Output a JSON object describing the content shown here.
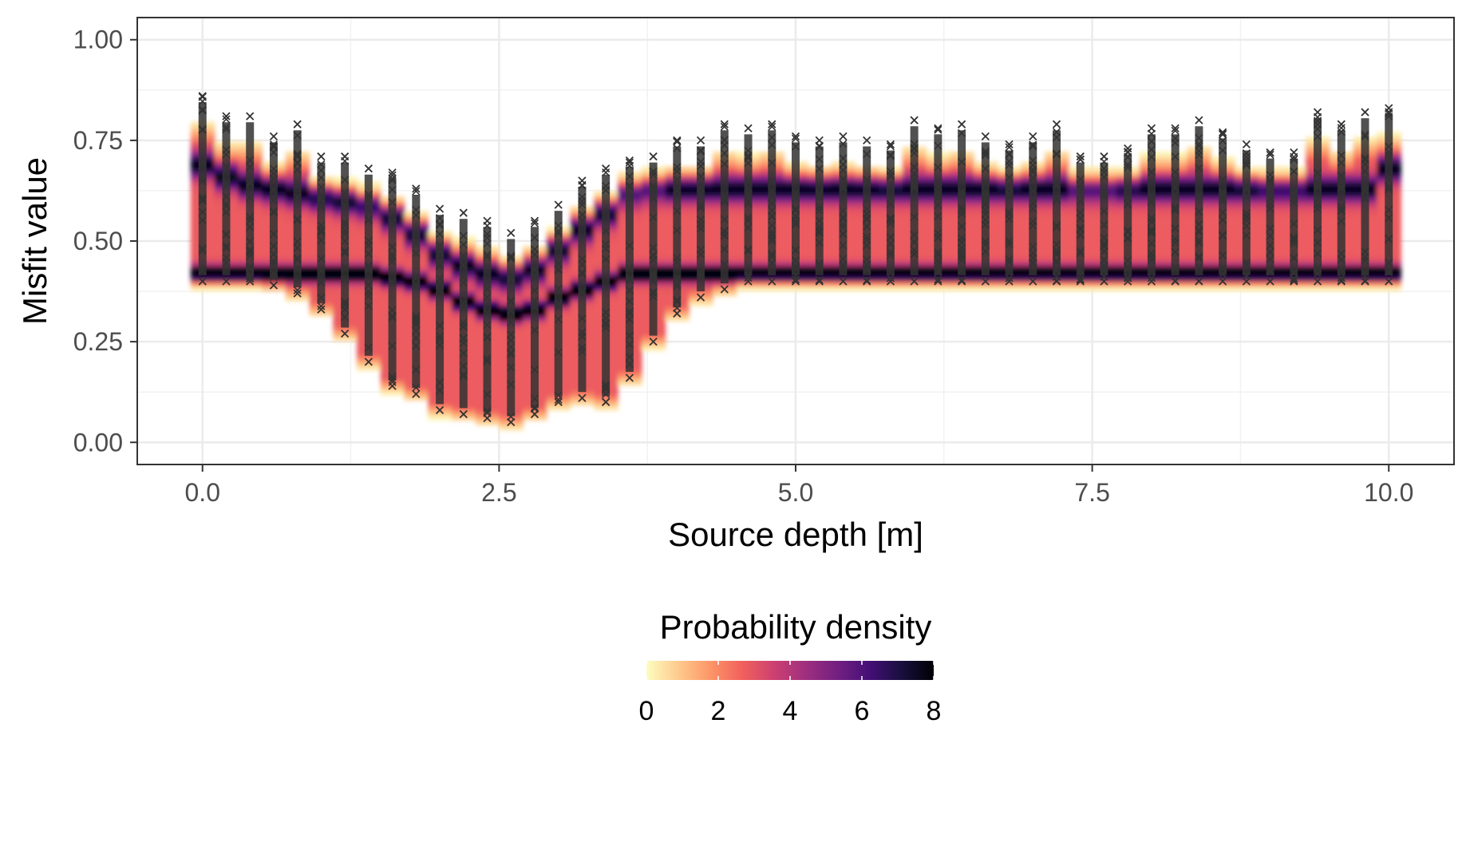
{
  "chart_data": {
    "type": "heatmap",
    "title": "",
    "xlabel": "Source depth [m]",
    "ylabel": "Misfit value",
    "xlim": [
      -0.55,
      10.55
    ],
    "ylim": [
      -0.055,
      1.055
    ],
    "x_ticks": [
      0.0,
      2.5,
      5.0,
      7.5,
      10.0
    ],
    "x_tick_labels": [
      "0.0",
      "2.5",
      "5.0",
      "7.5",
      "10.0"
    ],
    "y_ticks": [
      0.0,
      0.25,
      0.5,
      0.75,
      1.0
    ],
    "y_tick_labels": [
      "0.00",
      "0.25",
      "0.50",
      "0.75",
      "1.00"
    ],
    "grid": true,
    "legend": {
      "title": "Probability density",
      "placement": "bottom",
      "range": [
        0,
        8
      ],
      "ticks": [
        0,
        2,
        4,
        6,
        8
      ],
      "tick_labels": [
        "0",
        "2",
        "4",
        "6",
        "8"
      ],
      "colormap": [
        "#fcfdbf",
        "#feca8d",
        "#fd9668",
        "#f1605d",
        "#cd4071",
        "#9e2f7f",
        "#721f81",
        "#440f76",
        "#180f3d",
        "#000004"
      ]
    },
    "points_marker": "x",
    "points_color": "#333333",
    "depths": [
      0.0,
      0.2,
      0.4,
      0.6,
      0.8,
      1.0,
      1.2,
      1.4,
      1.6,
      1.8,
      2.0,
      2.2,
      2.4,
      2.6,
      2.8,
      3.0,
      3.2,
      3.4,
      3.6,
      3.8,
      4.0,
      4.2,
      4.4,
      4.6,
      4.8,
      5.0,
      5.2,
      5.4,
      5.6,
      5.8,
      6.0,
      6.2,
      6.4,
      6.6,
      6.8,
      7.0,
      7.2,
      7.4,
      7.6,
      7.8,
      8.0,
      8.2,
      8.4,
      8.6,
      8.8,
      9.0,
      9.2,
      9.4,
      9.6,
      9.8,
      10.0
    ],
    "misfit_min": [
      0.4,
      0.4,
      0.4,
      0.39,
      0.37,
      0.33,
      0.27,
      0.2,
      0.14,
      0.12,
      0.08,
      0.07,
      0.06,
      0.05,
      0.07,
      0.1,
      0.11,
      0.1,
      0.16,
      0.25,
      0.32,
      0.36,
      0.38,
      0.4,
      0.4,
      0.4,
      0.4,
      0.4,
      0.4,
      0.4,
      0.4,
      0.4,
      0.4,
      0.4,
      0.4,
      0.4,
      0.4,
      0.4,
      0.4,
      0.4,
      0.4,
      0.4,
      0.4,
      0.4,
      0.4,
      0.4,
      0.4,
      0.4,
      0.4,
      0.4,
      0.4
    ],
    "misfit_max": [
      0.86,
      0.81,
      0.81,
      0.76,
      0.79,
      0.71,
      0.71,
      0.68,
      0.67,
      0.63,
      0.58,
      0.57,
      0.55,
      0.52,
      0.55,
      0.59,
      0.65,
      0.68,
      0.7,
      0.71,
      0.75,
      0.75,
      0.79,
      0.78,
      0.79,
      0.76,
      0.75,
      0.76,
      0.75,
      0.74,
      0.8,
      0.78,
      0.79,
      0.76,
      0.74,
      0.76,
      0.79,
      0.71,
      0.71,
      0.73,
      0.78,
      0.78,
      0.8,
      0.77,
      0.74,
      0.72,
      0.72,
      0.82,
      0.79,
      0.82,
      0.83
    ],
    "density_mode_low": [
      0.42,
      0.42,
      0.42,
      0.42,
      0.42,
      0.42,
      0.42,
      0.42,
      0.41,
      0.4,
      0.38,
      0.35,
      0.33,
      0.32,
      0.33,
      0.36,
      0.38,
      0.4,
      0.42,
      0.42,
      0.42,
      0.42,
      0.42,
      0.42,
      0.42,
      0.42,
      0.42,
      0.42,
      0.42,
      0.42,
      0.42,
      0.42,
      0.42,
      0.42,
      0.42,
      0.42,
      0.42,
      0.42,
      0.42,
      0.42,
      0.42,
      0.42,
      0.42,
      0.42,
      0.42,
      0.42,
      0.42,
      0.42,
      0.42,
      0.42,
      0.42
    ],
    "density_mode_high": [
      0.69,
      0.66,
      0.64,
      0.63,
      0.62,
      0.61,
      0.6,
      0.59,
      0.56,
      0.52,
      0.47,
      0.44,
      0.42,
      0.41,
      0.43,
      0.48,
      0.53,
      0.57,
      0.62,
      0.63,
      0.63,
      0.63,
      0.63,
      0.63,
      0.63,
      0.63,
      0.63,
      0.63,
      0.63,
      0.63,
      0.63,
      0.63,
      0.63,
      0.63,
      0.63,
      0.63,
      0.63,
      0.63,
      0.63,
      0.63,
      0.63,
      0.63,
      0.63,
      0.63,
      0.63,
      0.63,
      0.63,
      0.63,
      0.63,
      0.63,
      0.68
    ]
  }
}
